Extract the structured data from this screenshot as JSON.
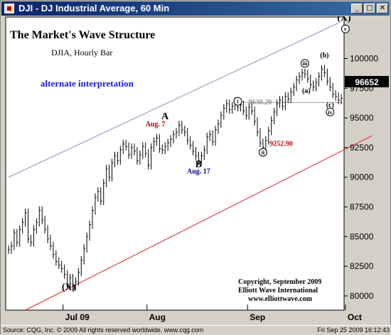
{
  "window": {
    "title": "DJI - DJ Industrial Average, 60 Min",
    "min_glyph": "_",
    "max_glyph": "□",
    "close_glyph": "✕"
  },
  "status": {
    "left": "Source: CQG, Inc. © 2009 All rights reserved worldwide. www.cqg.com",
    "right": "Fri Sep 25 2009 16:12:43"
  },
  "chart_data": {
    "type": "line",
    "title": "The Market's Wave Structure",
    "subtitle": "DJIA, Hourly Bar",
    "note": "alternate interpretation",
    "xlabel": "",
    "ylabel": "",
    "x_ticks": [
      "Jul 09",
      "Aug",
      "Sep",
      "Oct"
    ],
    "y_ticks": [
      "80000",
      "82500",
      "85000",
      "87500",
      "90000",
      "92500",
      "95000",
      "97500",
      "100000"
    ],
    "ylim": [
      7880,
      10350
    ],
    "last_price": "96652",
    "grid": false,
    "series": [
      {
        "values": [
          8390,
          8420,
          8530,
          8450,
          8560,
          8620,
          8700,
          8480,
          8450,
          8560,
          8620,
          8720,
          8640,
          8560,
          8480,
          8420,
          8350,
          8290,
          8260,
          8230,
          8180,
          8100,
          8150,
          8080,
          8120,
          8200,
          8300,
          8400,
          8500,
          8600,
          8720,
          8830,
          8880,
          8800,
          8950,
          9070,
          9000,
          9120,
          9180,
          9140,
          9230,
          9280,
          9260,
          9190,
          9250,
          9220,
          9140,
          9190,
          9260,
          9200,
          9100,
          9250,
          9300,
          9330,
          9240,
          9230,
          9260,
          9290,
          9320,
          9360,
          9380,
          9440,
          9400,
          9380,
          9310,
          9270,
          9220,
          9180,
          9140,
          9180,
          9230,
          9340,
          9360,
          9300,
          9400,
          9450,
          9520,
          9580,
          9620,
          9570,
          9600,
          9640,
          9590,
          9610,
          9560,
          9520,
          9590,
          9560,
          9470,
          9380,
          9290,
          9253,
          9310,
          9390,
          9480,
          9550,
          9620,
          9650,
          9600,
          9680,
          9660,
          9720,
          9760,
          9820,
          9850,
          9880,
          9870,
          9830,
          9780,
          9760,
          9800,
          9850,
          9910,
          9880,
          9810,
          9760,
          9700,
          9680,
          9650,
          9665
        ],
        "color": "#000000"
      }
    ],
    "channel_upper": {
      "from": [
        0,
        9000
      ],
      "to": [
        118,
        10300
      ],
      "color": "#8c8cbc"
    },
    "channel_lower": {
      "from": [
        6,
        7880
      ],
      "to": [
        130,
        9350
      ],
      "color": "#e02020"
    },
    "wave_labels": [
      {
        "text": "(X)",
        "style": "bold",
        "x": 21.5,
        "y": 8050,
        "color": "#000000"
      },
      {
        "text": "A",
        "style": "bold",
        "x": 56,
        "y": 9490,
        "color": "#000000"
      },
      {
        "text": "B",
        "style": "bold",
        "x": 68,
        "y": 9085,
        "color": "#000000"
      },
      {
        "text": "i",
        "style": "circle",
        "x": 82,
        "y": 9640,
        "color": "#000000"
      },
      {
        "text": "ii",
        "style": "circle",
        "x": 91,
        "y": 9210,
        "color": "#000000"
      },
      {
        "text": "iii",
        "style": "circle",
        "x": 106,
        "y": 9960,
        "color": "#000000"
      },
      {
        "text": "(a)",
        "style": "plain",
        "x": 106.5,
        "y": 9710,
        "color": "#000000"
      },
      {
        "text": "(b)",
        "style": "plain",
        "x": 113,
        "y": 10010,
        "color": "#000000"
      },
      {
        "text": "(c)",
        "style": "plain",
        "x": 115,
        "y": 9590,
        "color": "#000000"
      },
      {
        "text": "iv",
        "style": "circle",
        "x": 115,
        "y": 9550,
        "color": "#000000"
      },
      {
        "text": "(X)",
        "style": "bold",
        "x": 120,
        "y": 10320,
        "color": "#000000"
      },
      {
        "text": "v",
        "style": "circle",
        "x": 120.5,
        "y": 10250,
        "color": "#000000"
      }
    ],
    "annotations": [
      {
        "text": "Aug. 7",
        "x": 52.5,
        "y": 9430,
        "color": "#b00000"
      },
      {
        "text": "Aug. 17",
        "x": 68,
        "y": 9030,
        "color": "#00008b"
      },
      {
        "text": "9630.20",
        "x": 90,
        "y": 9615,
        "color": "#909090"
      },
      {
        "text": "9252.90",
        "x": 97.5,
        "y": 9265,
        "color": "#d00000"
      }
    ],
    "reference_level": {
      "value": 9630.2,
      "x_start": 82,
      "color": "#a0a0a0"
    },
    "credits": [
      "Copyright, September 2009",
      "Elliott Wave International",
      "www.elliottwave.com"
    ]
  }
}
